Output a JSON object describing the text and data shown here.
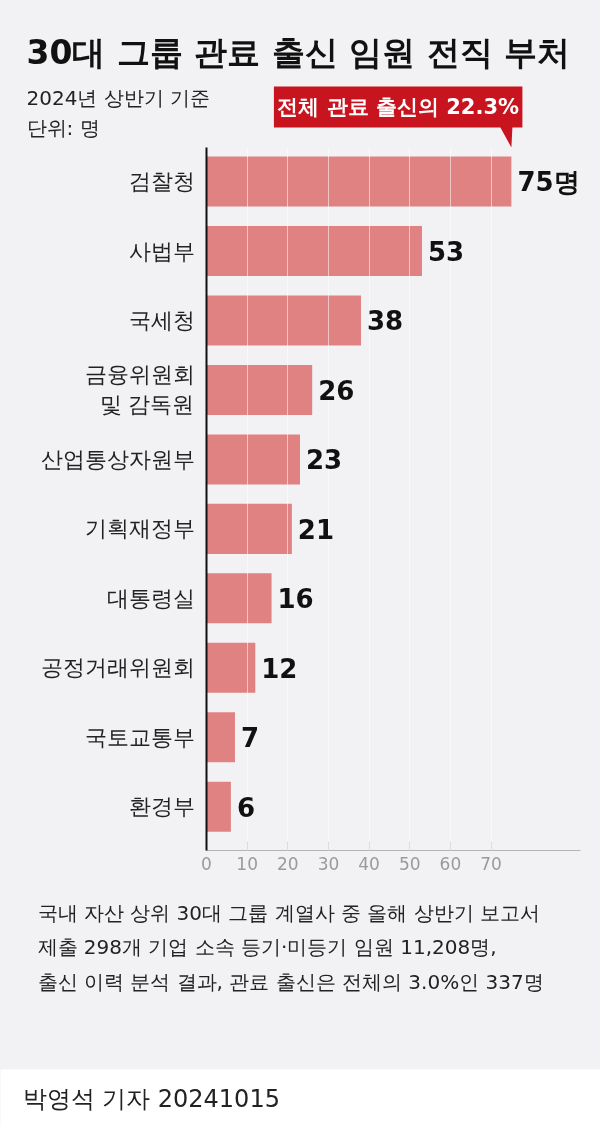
{
  "chart_data": {
    "type": "bar",
    "orientation": "horizontal",
    "title": "30대 그룹 관료 출신 임원 전직 부처",
    "subtitle": "2024년 상반기 기준",
    "categories": [
      "검찰청",
      "사법부",
      "국세청",
      "금융위원회\n및 감독원",
      "산업통상자원부",
      "기획재정부",
      "대통령실",
      "공정거래위원회",
      "국토교통부",
      "환경부"
    ],
    "values": [
      75,
      53,
      38,
      26,
      23,
      21,
      16,
      12,
      7,
      6
    ],
    "value_labels": [
      "75명",
      "53",
      "38",
      "26",
      "23",
      "21",
      "16",
      "12",
      "7",
      "6"
    ],
    "color": "#e08182",
    "xlim": [
      0,
      92
    ],
    "xticks": [
      0,
      10,
      20,
      30,
      40,
      50,
      60,
      70
    ],
    "grid": "x",
    "annotations": [
      {
        "text": "전체 관료 출신의 22.3%",
        "x": 75,
        "y": "검찰청"
      },
      "단위: 명",
      "국내 자산 상위 30대 그룹 계열사 중 올해 상반기 보고서\n제출 298개 기업 소속 등기·미등기 임원 11,208명,\n출신 이력 분석 결과, 관료 출신은 전체의 3.0%인 337명",
      "박영석 기자 20241015"
    ]
  }
}
